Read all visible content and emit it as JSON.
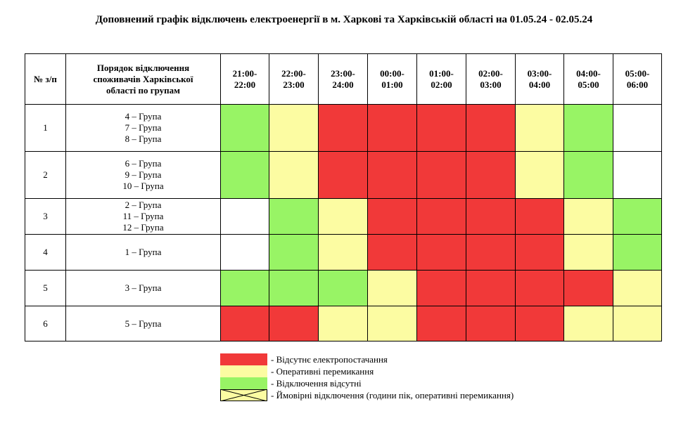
{
  "title": "Доповнений графік відключень електроенергії в м. Харкові та Харківській області на 01.05.24 - 02.05.24",
  "header": {
    "num": "№ з/п",
    "group_col": [
      "Порядок відключення",
      "споживачів Харківської",
      "області по групам"
    ],
    "slots": [
      [
        "21:00-",
        "22:00"
      ],
      [
        "22:00-",
        "23:00"
      ],
      [
        "23:00-",
        "24:00"
      ],
      [
        "00:00-",
        "01:00"
      ],
      [
        "01:00-",
        "02:00"
      ],
      [
        "02:00-",
        "03:00"
      ],
      [
        "03:00-",
        "04:00"
      ],
      [
        "04:00-",
        "05:00"
      ],
      [
        "05:00-",
        "06:00"
      ]
    ]
  },
  "colors": {
    "red": "#f13939",
    "yellow": "#fcfca2",
    "green": "#98f465",
    "white": "#ffffff"
  },
  "rows": [
    {
      "num": "1",
      "groups": [
        "4 – Група",
        "7 – Група",
        "8 – Група"
      ],
      "cells": [
        "green",
        "yellow",
        "red",
        "red",
        "red",
        "red",
        "yellow",
        "green",
        "white"
      ]
    },
    {
      "num": "2",
      "groups": [
        "6 – Група",
        "9 – Група",
        "10 – Група"
      ],
      "cells": [
        "green",
        "yellow",
        "red",
        "red",
        "red",
        "red",
        "yellow",
        "green",
        "white"
      ]
    },
    {
      "num": "3",
      "groups": [
        "2 – Група",
        "11 – Група",
        "12 – Група"
      ],
      "cells": [
        "white",
        "green",
        "yellow",
        "red",
        "red",
        "red",
        "red",
        "yellow",
        "green"
      ]
    },
    {
      "num": "4",
      "groups": [
        "1 – Група"
      ],
      "cells": [
        "white",
        "green",
        "yellow",
        "red",
        "red",
        "red",
        "red",
        "yellow",
        "green"
      ]
    },
    {
      "num": "5",
      "groups": [
        "3 – Група"
      ],
      "cells": [
        "green",
        "green",
        "green",
        "yellow",
        "red",
        "red",
        "red",
        "red",
        "yellow"
      ]
    },
    {
      "num": "6",
      "groups": [
        "5 – Група"
      ],
      "cells": [
        "red",
        "red",
        "yellow",
        "yellow",
        "red",
        "red",
        "red",
        "yellow",
        "yellow"
      ]
    }
  ],
  "legend": [
    {
      "color": "red",
      "label": "- Відсутнє електропостачання"
    },
    {
      "color": "yellow",
      "label": "- Оперативні перемикання"
    },
    {
      "color": "green",
      "label": "- Відключення відсутні"
    },
    {
      "color": "yellow",
      "crossed": true,
      "label": "- Ймовірні відключення (години пік, оперативні перемикання)"
    }
  ]
}
